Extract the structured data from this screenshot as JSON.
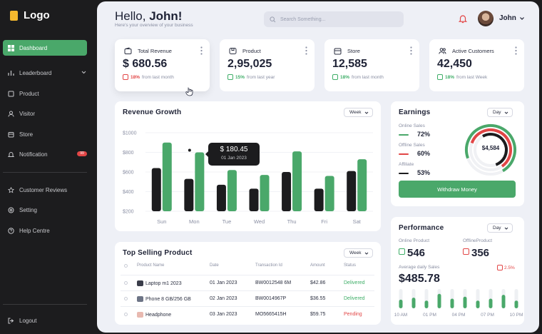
{
  "sidebar": {
    "logo": "Logo",
    "items": [
      {
        "label": "Dashboard",
        "icon": "grid-icon",
        "active": true
      },
      {
        "label": "Leaderboard",
        "icon": "bar-chart-icon"
      },
      {
        "label": "Product",
        "icon": "box-icon"
      },
      {
        "label": "Visitor",
        "icon": "user-icon"
      },
      {
        "label": "Store",
        "icon": "store-icon"
      },
      {
        "label": "Notification",
        "icon": "bell-icon",
        "badge": "99"
      },
      {
        "label": "Customer Reviews",
        "icon": "star-icon"
      },
      {
        "label": "Setting",
        "icon": "gear-icon"
      },
      {
        "label": "Help Centre",
        "icon": "help-icon"
      },
      {
        "label": "Logout",
        "icon": "logout-icon"
      }
    ]
  },
  "header": {
    "greeting": "Hello,",
    "name": "John!",
    "subtitle": "Here's your overview of your business",
    "search_placeholder": "Search Something...",
    "user": "John"
  },
  "stats": [
    {
      "title": "Total Revenue",
      "value": "$ 680.56",
      "change": "18%",
      "trend": "down",
      "note": "from last month",
      "icon": "wallet-icon"
    },
    {
      "title": "Product",
      "value": "2,95,025",
      "change": "15%",
      "trend": "up",
      "note": "from last year",
      "icon": "box-icon"
    },
    {
      "title": "Store",
      "value": "12,585",
      "change": "18%",
      "trend": "up",
      "note": "from last month",
      "icon": "store-icon"
    },
    {
      "title": "Active Customers",
      "value": "42,450",
      "change": "18%",
      "trend": "up",
      "note": "from last Week",
      "icon": "users-icon"
    }
  ],
  "revenue": {
    "title": "Revenue Growth",
    "period": "Week",
    "tooltip_value": "$ 180.45",
    "tooltip_date": "01 Jan 2023"
  },
  "chart_data": {
    "type": "bar",
    "categories": [
      "Sun",
      "Mon",
      "Tue",
      "Wed",
      "Thu",
      "Fri",
      "Sat"
    ],
    "series": [
      {
        "values": [
          640,
          530,
          470,
          430,
          600,
          430,
          610
        ],
        "color": "#1c1c1e"
      },
      {
        "values": [
          900,
          800,
          620,
          570,
          810,
          560,
          730
        ],
        "color": "#4aa86a"
      }
    ],
    "yticks": [
      "$1000",
      "$800",
      "$600",
      "$400",
      "$200"
    ],
    "ylim": [
      200,
      1000
    ],
    "grid": true
  },
  "top_selling": {
    "title": "Top Selling Product",
    "period": "Week",
    "columns": [
      "Product Name",
      "Date",
      "Transaction Id",
      "Amount",
      "Status"
    ],
    "rows": [
      {
        "product": "Laptop m1 2023",
        "date": "01 Jan 2023",
        "txn": "BW0012548 6M",
        "amount": "$42.86",
        "status": "Delivered"
      },
      {
        "product": "Phone 8 GB/256 GB",
        "date": "02 Jan 2023",
        "txn": "BW0014967P",
        "amount": "$36.55",
        "status": "Delivered"
      },
      {
        "product": "Headphone",
        "date": "03 Jan 2023",
        "txn": "MO5665415H",
        "amount": "$59.75",
        "status": "Pending"
      }
    ]
  },
  "earnings": {
    "title": "Earnings",
    "period": "Day",
    "items": [
      {
        "label": "Online Sales",
        "value": "72%",
        "color": "#4aa86a"
      },
      {
        "label": "Offline Sales",
        "value": "60%",
        "color": "#e24646"
      },
      {
        "label": "Affiliate",
        "value": "53%",
        "color": "#1c1c1e"
      }
    ],
    "donut_value": "$4,584",
    "button": "Withdraw Money"
  },
  "performance": {
    "title": "Performance",
    "period": "Day",
    "online_label": "Online Product",
    "online_value": "546",
    "offline_label": "OfflineProduct",
    "offline_value": "356",
    "avg_label": "Average daily Sales",
    "avg_value": "$485.78",
    "avg_change": "2.5%",
    "x_labels": [
      "10 AM",
      "01 PM",
      "04 PM",
      "07 PM",
      "10 PM"
    ],
    "bars": [
      0.45,
      0.55,
      0.4,
      0.75,
      0.5,
      0.6,
      0.4,
      0.5,
      0.7,
      0.4
    ]
  }
}
